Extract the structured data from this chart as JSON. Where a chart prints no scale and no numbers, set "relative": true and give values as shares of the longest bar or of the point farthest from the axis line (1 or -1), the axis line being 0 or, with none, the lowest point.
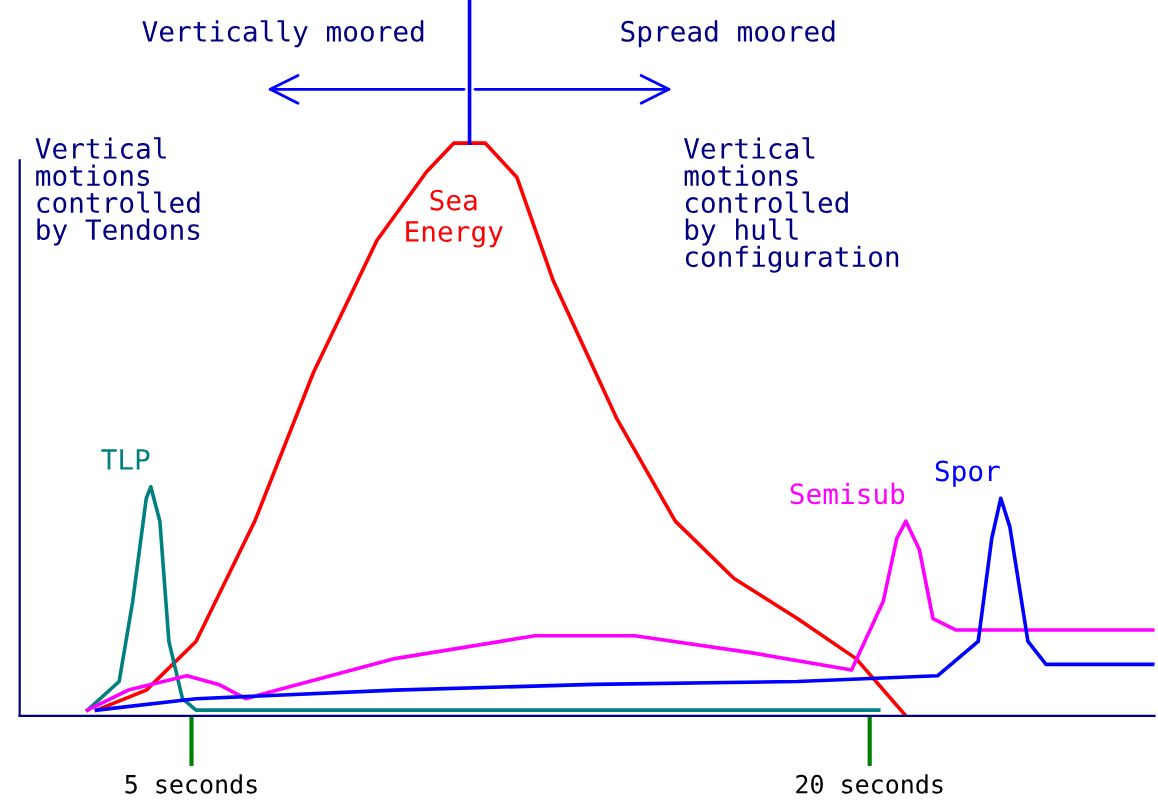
{
  "chart_data": {
    "type": "line",
    "relative": true,
    "xlim": [
      1.2,
      26.3
    ],
    "xticks": [
      {
        "value": 5,
        "label": "5 seconds"
      },
      {
        "value": 20,
        "label": "20 seconds"
      }
    ],
    "annotations": [
      "Vertically moored",
      "Spread moored",
      "Vertical\nmotions\ncontrolled\nby Tendons",
      "Vertical\nmotions\ncontrolled\nby hull\nconfiguration"
    ],
    "series": [
      {
        "name": "Sea\nEnergy",
        "color": "#ff0000",
        "x": [
          2.9,
          4.0,
          5.1,
          6.4,
          7.7,
          9.1,
          10.2,
          10.8,
          11.5,
          12.2,
          13.0,
          14.4,
          15.7,
          17.0,
          18.4,
          19.7,
          20.8
        ],
        "values": [
          0.01,
          0.045,
          0.13,
          0.34,
          0.6,
          0.83,
          0.95,
          1.0,
          1.0,
          0.94,
          0.76,
          0.52,
          0.34,
          0.24,
          0.17,
          0.1,
          0.0
        ]
      },
      {
        "name": "TLP",
        "color": "#008080",
        "x": [
          2.7,
          3.4,
          3.7,
          4.0,
          4.1,
          4.3,
          4.5,
          4.8,
          5.1,
          20.2
        ],
        "values": [
          0.01,
          0.06,
          0.2,
          0.38,
          0.4,
          0.34,
          0.13,
          0.03,
          0.01,
          0.01
        ]
      },
      {
        "name": "Semisub",
        "color": "#ff00ff",
        "x": [
          2.7,
          3.6,
          4.9,
          5.6,
          6.2,
          6.9,
          9.5,
          12.6,
          14.8,
          17.4,
          19.6,
          20.3,
          20.6,
          20.8,
          21.1,
          21.4,
          21.9,
          26.3
        ],
        "values": [
          0.01,
          0.045,
          0.07,
          0.055,
          0.03,
          0.045,
          0.1,
          0.14,
          0.14,
          0.11,
          0.08,
          0.2,
          0.31,
          0.34,
          0.29,
          0.17,
          0.15,
          0.15
        ]
      },
      {
        "name": "Spor",
        "color": "#0000ff",
        "x": [
          2.9,
          5.1,
          9.5,
          13.9,
          18.4,
          21.5,
          22.4,
          22.7,
          22.9,
          23.1,
          23.5,
          23.9,
          26.3
        ],
        "values": [
          0.01,
          0.03,
          0.045,
          0.055,
          0.06,
          0.07,
          0.13,
          0.31,
          0.38,
          0.33,
          0.13,
          0.09,
          0.09
        ]
      }
    ]
  }
}
